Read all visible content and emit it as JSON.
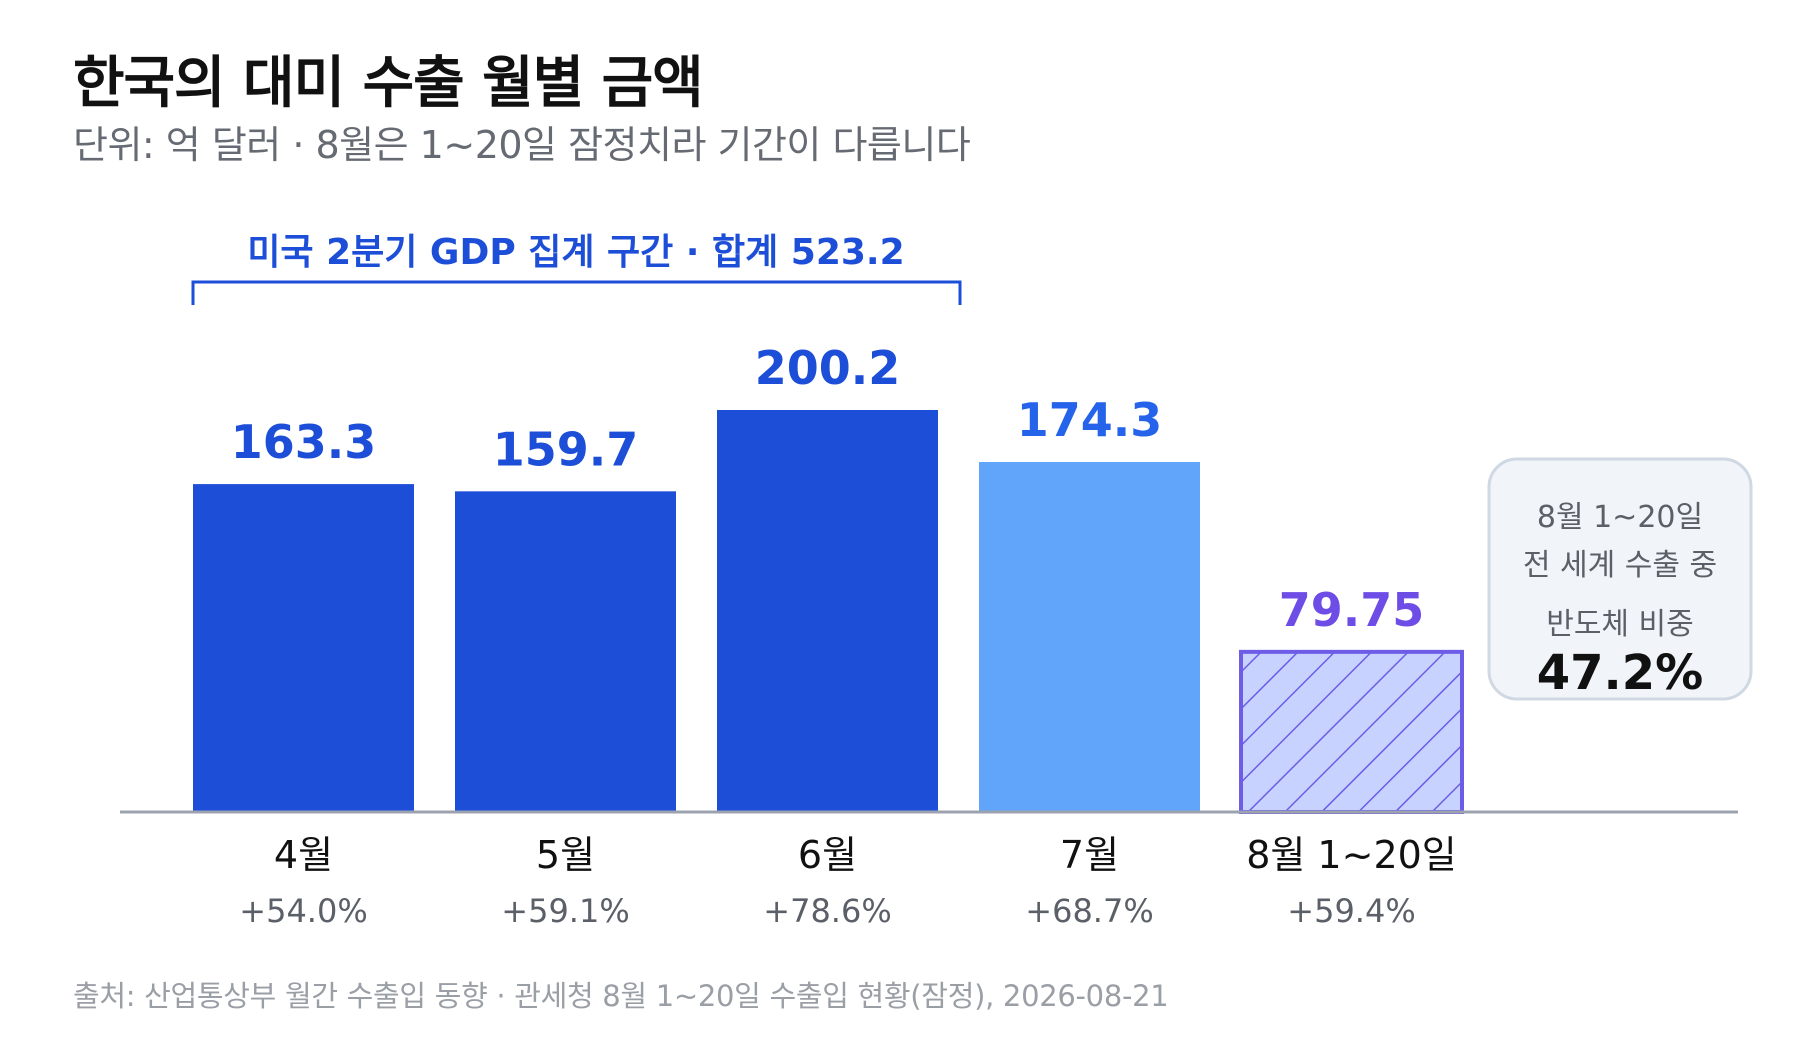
{
  "header": {
    "title": "한국의 대미 수출 월별 금액",
    "subtitle": "단위: 억 달러 · 8월은 1~20일 잠정치라 기간이 다릅니다"
  },
  "bracket": {
    "label": "미국 2분기 GDP 집계 구간 · 합계 523.2"
  },
  "callout": {
    "line1": "8월 1~20일",
    "line2": "전 세계 수출 중",
    "line3": "반도체 비중",
    "value": "47.2%"
  },
  "source": "출처: 산업통상부 월간 수출입 동향 · 관세청 8월 1~20일 수출입 현황(잠정), 2026-08-21",
  "colors": {
    "q2_bar": "#1d4ed8",
    "july_bar": "#60a5fa",
    "aug_stroke": "#6d5ce6",
    "aug_fill": "#c7d2fe",
    "q2_label": "#1d4ed8",
    "july_label": "#2563eb",
    "aug_label": "#6d4de6",
    "axis": "#9ca3af"
  },
  "chart_data": {
    "type": "bar",
    "categories": [
      "4월",
      "5월",
      "6월",
      "7월",
      "8월 1~20일"
    ],
    "values": [
      163.3,
      159.7,
      200.2,
      174.3,
      79.75
    ],
    "value_labels": [
      "163.3",
      "159.7",
      "200.2",
      "174.3",
      "79.75"
    ],
    "growth_labels": [
      "+54.0%",
      "+59.1%",
      "+78.6%",
      "+68.7%",
      "+59.4%"
    ],
    "bar_styles": [
      "q2",
      "q2",
      "q2",
      "july",
      "partial-hatched"
    ],
    "ylim": [
      0,
      200.2
    ],
    "grid": false,
    "xlabel": "",
    "ylabel": ""
  }
}
